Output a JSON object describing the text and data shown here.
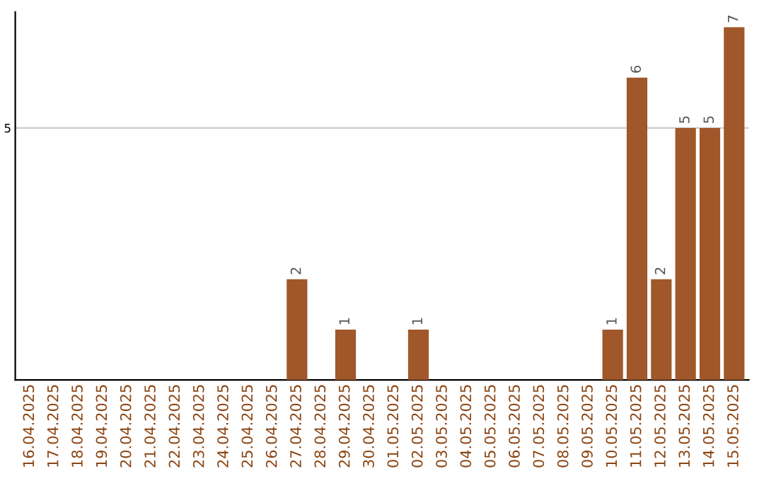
{
  "chart_data": {
    "type": "bar",
    "categories": [
      "16.04.2025",
      "17.04.2025",
      "18.04.2025",
      "19.04.2025",
      "20.04.2025",
      "21.04.2025",
      "22.04.2025",
      "23.04.2025",
      "24.04.2025",
      "25.04.2025",
      "26.04.2025",
      "27.04.2025",
      "28.04.2025",
      "29.04.2025",
      "30.04.2025",
      "01.05.2025",
      "02.05.2025",
      "03.05.2025",
      "04.05.2025",
      "05.05.2025",
      "06.05.2025",
      "07.05.2025",
      "08.05.2025",
      "09.05.2025",
      "10.05.2025",
      "11.05.2025",
      "12.05.2025",
      "13.05.2025",
      "14.05.2025",
      "15.05.2025"
    ],
    "values": [
      0,
      0,
      0,
      0,
      0,
      0,
      0,
      0,
      0,
      0,
      0,
      2,
      0,
      1,
      0,
      0,
      1,
      0,
      0,
      0,
      0,
      0,
      0,
      0,
      1,
      6,
      2,
      5,
      5,
      7
    ],
    "value_labels": [
      null,
      null,
      null,
      null,
      null,
      null,
      null,
      null,
      null,
      null,
      null,
      "2",
      null,
      "1",
      null,
      null,
      "1",
      null,
      null,
      null,
      null,
      null,
      null,
      null,
      "1",
      "6",
      "2",
      "5",
      "5",
      "7"
    ],
    "color": "#a0572a",
    "ylim": [
      0,
      7.3
    ],
    "yticks": [
      5
    ],
    "grid": "y",
    "legend": false
  }
}
